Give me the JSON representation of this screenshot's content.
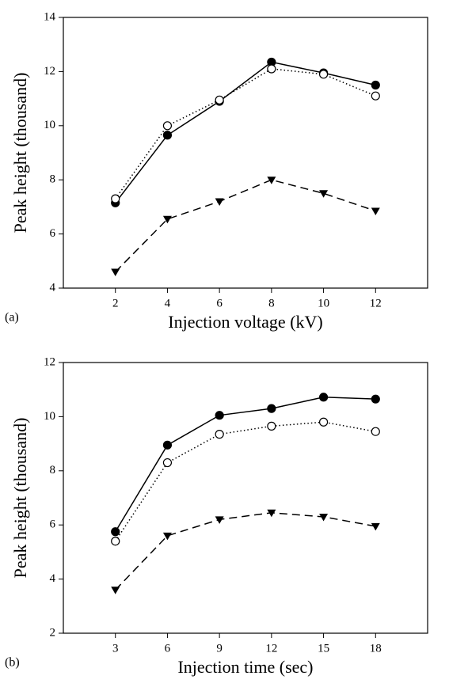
{
  "chart_data": [
    {
      "type": "line",
      "panel_label": "(a)",
      "xlabel": "Injection voltage (kV)",
      "ylabel": "Peak height (thousand)",
      "x": [
        2,
        4,
        6,
        8,
        10,
        12
      ],
      "xlim": [
        0,
        14
      ],
      "xticks": [
        2,
        4,
        6,
        8,
        10,
        12
      ],
      "ylim": [
        4,
        14
      ],
      "yticks": [
        4,
        6,
        8,
        10,
        12,
        14
      ],
      "series": [
        {
          "color": "#000000",
          "marker": "filled-circle",
          "linestyle": "solid",
          "values": [
            7.15,
            9.65,
            10.9,
            12.35,
            11.95,
            11.5
          ]
        },
        {
          "color": "#000000",
          "marker": "open-circle",
          "linestyle": "dotted",
          "values": [
            7.3,
            10.0,
            10.95,
            12.1,
            11.9,
            11.1
          ]
        },
        {
          "color": "#000000",
          "marker": "triangle-down",
          "linestyle": "dashed",
          "values": [
            4.6,
            6.55,
            7.2,
            8.0,
            7.5,
            6.85
          ]
        }
      ]
    },
    {
      "type": "line",
      "panel_label": "(b)",
      "xlabel": "Injection time (sec)",
      "ylabel": "Peak height (thousand)",
      "x": [
        3,
        6,
        9,
        12,
        15,
        18
      ],
      "xlim": [
        0,
        21
      ],
      "xticks": [
        3,
        6,
        9,
        12,
        15,
        18
      ],
      "ylim": [
        2,
        12
      ],
      "yticks": [
        2,
        4,
        6,
        8,
        10,
        12
      ],
      "series": [
        {
          "color": "#000000",
          "marker": "filled-circle",
          "linestyle": "solid",
          "values": [
            5.75,
            8.95,
            10.05,
            10.3,
            10.72,
            10.65
          ]
        },
        {
          "color": "#000000",
          "marker": "open-circle",
          "linestyle": "dotted",
          "values": [
            5.4,
            8.3,
            9.35,
            9.65,
            9.8,
            9.45
          ]
        },
        {
          "color": "#000000",
          "marker": "triangle-down",
          "linestyle": "dashed",
          "values": [
            3.6,
            5.6,
            6.2,
            6.45,
            6.3,
            5.95
          ]
        }
      ]
    }
  ]
}
